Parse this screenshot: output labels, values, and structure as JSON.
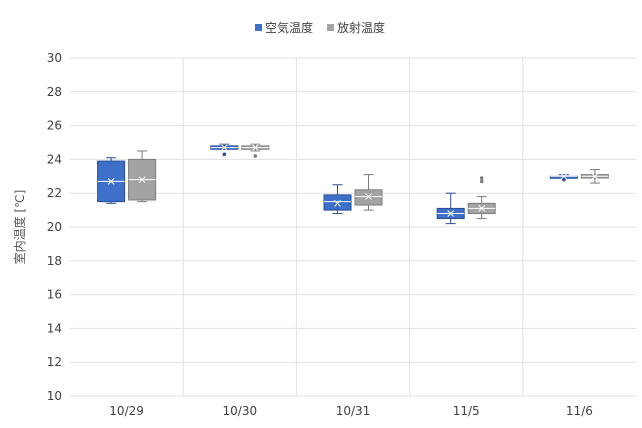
{
  "chart_data": {
    "type": "boxplot",
    "title": "",
    "xlabel": "",
    "ylabel": "室内温度 [℃]",
    "ylim": [
      10,
      30
    ],
    "yticks": [
      10,
      12,
      14,
      16,
      18,
      20,
      22,
      24,
      26,
      28,
      30
    ],
    "grid": true,
    "legend_position": "top-center",
    "categories": [
      "10/29",
      "10/30",
      "10/31",
      "11/5",
      "11/6"
    ],
    "series": [
      {
        "name": "空気温度",
        "color": "#3e6fc9",
        "edge": "#2a4f97",
        "boxes": [
          {
            "min": 21.4,
            "q1": 21.5,
            "median": 22.7,
            "q3": 23.9,
            "max": 24.1,
            "mean": 22.7,
            "outliers": []
          },
          {
            "min": 24.6,
            "q1": 24.6,
            "median": 24.7,
            "q3": 24.8,
            "max": 24.9,
            "mean": 24.7,
            "outliers": [
              24.3
            ]
          },
          {
            "min": 20.8,
            "q1": 21.0,
            "median": 21.5,
            "q3": 21.9,
            "max": 22.5,
            "mean": 21.4,
            "outliers": []
          },
          {
            "min": 20.2,
            "q1": 20.5,
            "median": 20.8,
            "q3": 21.1,
            "max": 22.0,
            "mean": 20.8,
            "outliers": []
          },
          {
            "min": 22.9,
            "q1": 23.0,
            "median": 23.0,
            "q3": 23.0,
            "max": 23.1,
            "mean": 23.0,
            "outliers": [
              22.8
            ]
          }
        ]
      },
      {
        "name": "放射温度",
        "color": "#a3a3a3",
        "edge": "#7b7b7b",
        "boxes": [
          {
            "min": 21.5,
            "q1": 21.6,
            "median": 22.8,
            "q3": 24.0,
            "max": 24.5,
            "mean": 22.8,
            "outliers": []
          },
          {
            "min": 24.5,
            "q1": 24.6,
            "median": 24.7,
            "q3": 24.8,
            "max": 24.9,
            "mean": 24.7,
            "outliers": [
              24.2
            ]
          },
          {
            "min": 21.0,
            "q1": 21.3,
            "median": 21.8,
            "q3": 22.2,
            "max": 23.1,
            "mean": 21.8,
            "outliers": []
          },
          {
            "min": 20.5,
            "q1": 20.8,
            "median": 21.1,
            "q3": 21.4,
            "max": 21.8,
            "mean": 21.1,
            "outliers": [
              22.7,
              22.9
            ]
          },
          {
            "min": 22.6,
            "q1": 22.9,
            "median": 23.0,
            "q3": 23.1,
            "max": 23.4,
            "mean": 23.0,
            "outliers": []
          }
        ]
      }
    ]
  }
}
